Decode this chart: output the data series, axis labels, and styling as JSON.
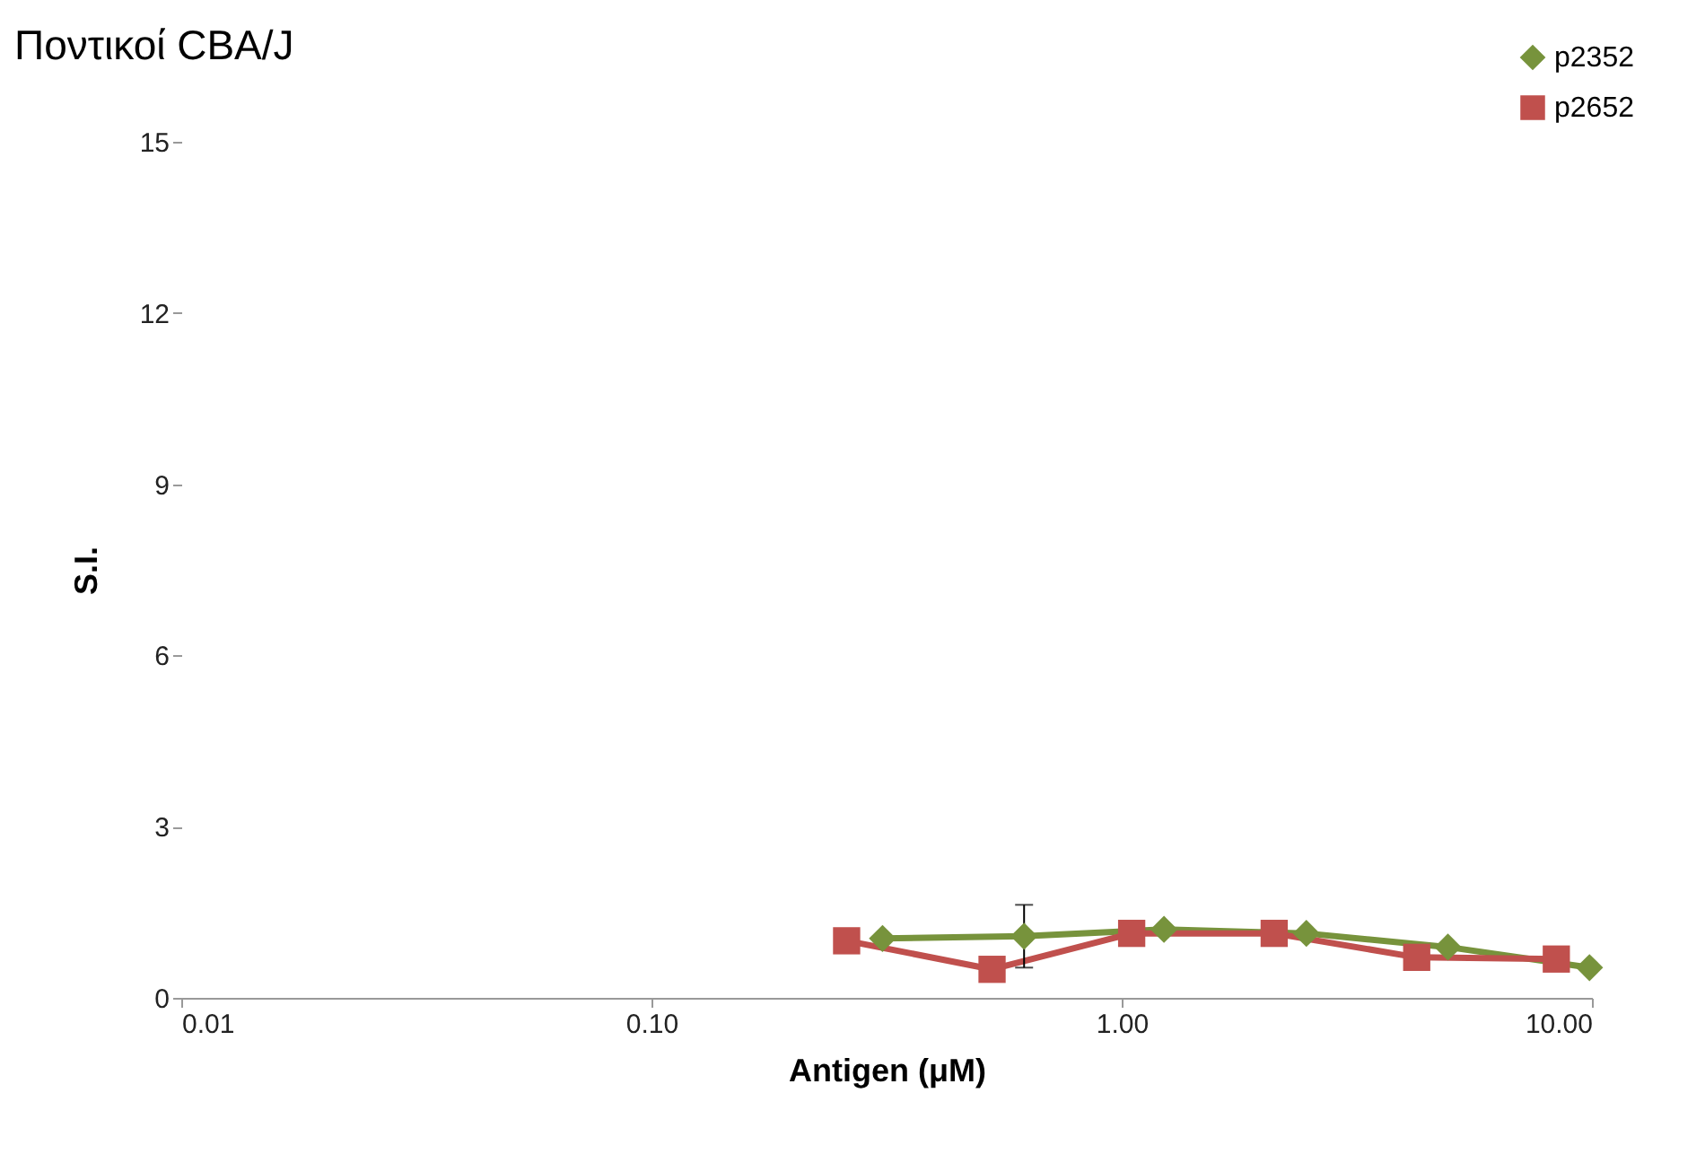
{
  "chart_data": {
    "type": "line",
    "title": "Ποντικοί CBA/J",
    "xlabel": "Antigen (μM)",
    "ylabel": "S.I.",
    "log": "x",
    "xlim": [
      0.01,
      10
    ],
    "xticks": [
      {
        "value": 0.01,
        "label": "0.01"
      },
      {
        "value": 0.1,
        "label": "0.10"
      },
      {
        "value": 1,
        "label": "1.00"
      },
      {
        "value": 10,
        "label": "10.00"
      }
    ],
    "ylim": [
      0,
      15
    ],
    "yticks": [
      0,
      3,
      6,
      9,
      12,
      15
    ],
    "grid": false,
    "legend": "top right",
    "series": [
      {
        "name": "p2352",
        "color": "#77933c",
        "marker": "diamond",
        "x": [
          0.31,
          0.62,
          1.23,
          2.47,
          4.94,
          9.88
        ],
        "values": [
          1.04,
          1.08,
          1.2,
          1.13,
          0.89,
          0.53
        ],
        "errors": [
          null,
          0.55,
          null,
          null,
          null,
          null
        ]
      },
      {
        "name": "p2652",
        "color": "#c0504d",
        "marker": "square",
        "x": [
          0.26,
          0.53,
          1.05,
          2.11,
          4.24,
          8.4
        ],
        "values": [
          1.0,
          0.5,
          1.13,
          1.13,
          0.71,
          0.68
        ]
      }
    ]
  }
}
